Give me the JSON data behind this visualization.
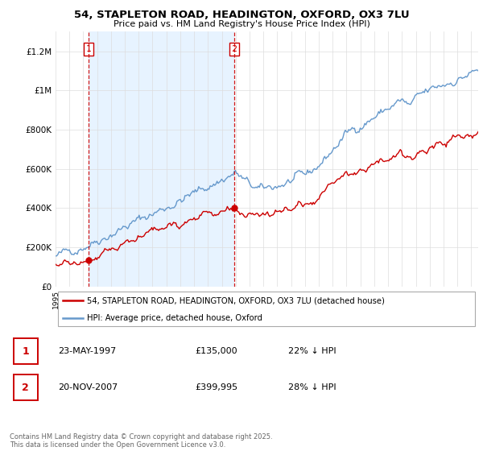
{
  "title_line1": "54, STAPLETON ROAD, HEADINGTON, OXFORD, OX3 7LU",
  "title_line2": "Price paid vs. HM Land Registry's House Price Index (HPI)",
  "ylabel_ticks": [
    "£0",
    "£200K",
    "£400K",
    "£600K",
    "£800K",
    "£1M",
    "£1.2M"
  ],
  "ytick_values": [
    0,
    200000,
    400000,
    600000,
    800000,
    1000000,
    1200000
  ],
  "ymax": 1300000,
  "xmin": 1995.0,
  "xmax": 2025.5,
  "transaction1": {
    "date_num": 1997.38,
    "price": 135000,
    "label": "1",
    "date_str": "23-MAY-1997",
    "price_str": "£135,000",
    "hpi_str": "22% ↓ HPI"
  },
  "transaction2": {
    "date_num": 2007.89,
    "price": 399995,
    "label": "2",
    "date_str": "20-NOV-2007",
    "price_str": "£399,995",
    "hpi_str": "28% ↓ HPI"
  },
  "legend_red_label": "54, STAPLETON ROAD, HEADINGTON, OXFORD, OX3 7LU (detached house)",
  "legend_blue_label": "HPI: Average price, detached house, Oxford",
  "footer": "Contains HM Land Registry data © Crown copyright and database right 2025.\nThis data is licensed under the Open Government Licence v3.0.",
  "red_color": "#cc0000",
  "blue_color": "#6699cc",
  "shade_color": "#ddeeff",
  "grid_color": "#dddddd"
}
